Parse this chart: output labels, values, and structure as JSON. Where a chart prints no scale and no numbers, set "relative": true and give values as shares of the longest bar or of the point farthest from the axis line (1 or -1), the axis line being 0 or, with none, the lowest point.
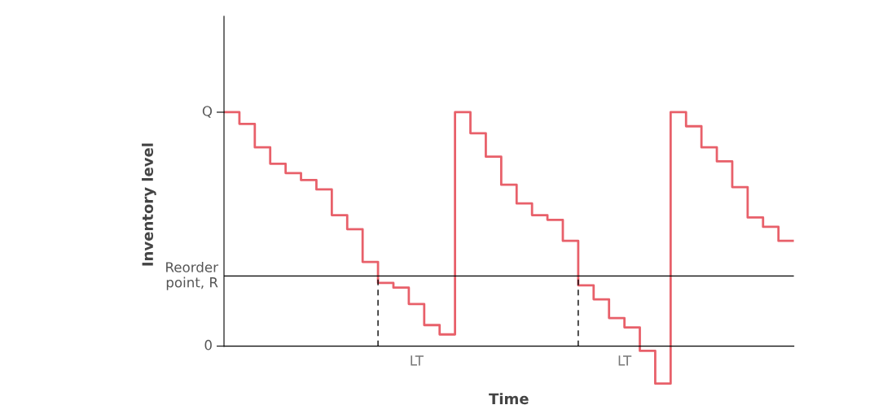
{
  "chart_data": {
    "type": "step",
    "xlabel": "Time",
    "ylabel": "Inventory level",
    "relative": true,
    "categories": [
      null,
      null,
      null,
      null,
      null,
      null,
      null,
      null,
      null,
      null,
      null,
      null,
      null,
      null,
      null,
      null,
      null,
      null,
      null,
      null,
      null,
      null,
      null,
      null,
      null,
      null,
      null,
      null,
      null,
      null,
      null,
      null,
      null,
      null,
      null,
      null,
      null,
      null
    ],
    "series": [
      {
        "color": "#e8606a",
        "values": [
          1.0,
          0.95,
          0.85,
          0.78,
          0.74,
          0.71,
          0.67,
          0.56,
          0.5,
          0.36,
          0.27,
          0.25,
          0.18,
          0.09,
          0.05,
          1.0,
          0.91,
          0.81,
          0.69,
          0.61,
          0.56,
          0.54,
          0.45,
          0.26,
          0.2,
          0.12,
          0.08,
          -0.02,
          -0.16,
          1.0,
          0.94,
          0.85,
          0.79,
          0.68,
          0.55,
          0.51,
          0.45,
          0.45
        ]
      }
    ],
    "grid": false,
    "legend": false,
    "ref_lines": [
      {
        "axis": "y",
        "value": 0.3,
        "label": "Reorder\npoint, R",
        "color": "#000000",
        "line_style": "solid"
      }
    ],
    "annotations": [
      "Q",
      "0",
      "LT",
      "LT"
    ]
  }
}
